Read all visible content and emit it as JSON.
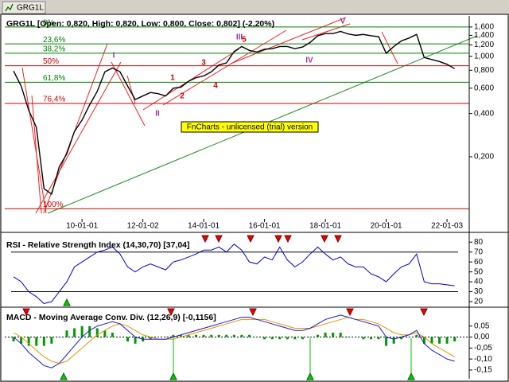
{
  "toolbar": {
    "tab": "GRG1L"
  },
  "chart_data": [
    {
      "type": "line",
      "title": "GRG1L [Open: 0,820, High: 0,820, Low: 0,800, Close: 0,802] (-2,20%)",
      "log_scale": true,
      "x": [
        2007.75,
        2008,
        2008.25,
        2008.5,
        2008.75,
        2009,
        2009.25,
        2009.5,
        2009.75,
        2010,
        2010.25,
        2010.5,
        2010.75,
        2011,
        2011.25,
        2011.5,
        2011.75,
        2012,
        2012.25,
        2012.5,
        2012.75,
        2013,
        2013.25,
        2013.5,
        2013.75,
        2014,
        2014.25,
        2014.5,
        2014.75,
        2015,
        2015.25,
        2015.5,
        2015.75,
        2016,
        2016.25,
        2016.5,
        2016.75,
        2017,
        2017.25,
        2017.5,
        2017.75,
        2018,
        2018.25,
        2018.5,
        2018.75,
        2019,
        2019.25,
        2019.5,
        2019.75,
        2020,
        2020.25,
        2020.5,
        2020.75,
        2021,
        2021.25,
        2021.5,
        2021.75,
        2022,
        2022.25
      ],
      "xlim": [
        2007.46,
        2022.73
      ],
      "xticks": [
        {
          "value": 2010,
          "label": "10-01-01"
        },
        {
          "value": 2012,
          "label": "12-01-02"
        },
        {
          "value": 2014,
          "label": "14-01-01"
        },
        {
          "value": 2016,
          "label": "16-01-01"
        },
        {
          "value": 2018,
          "label": "18-01-01"
        },
        {
          "value": 2020,
          "label": "20-01-01"
        },
        {
          "value": 2022,
          "label": "22-01-03"
        }
      ],
      "ylim": [
        0.074,
        1.91
      ],
      "yticks": [
        {
          "value": 1.6,
          "label": "1,600"
        },
        {
          "value": 1.4,
          "label": "1,400"
        },
        {
          "value": 1.2,
          "label": "1,200"
        },
        {
          "value": 1.0,
          "label": "1,000"
        },
        {
          "value": 0.8,
          "label": "0,800"
        },
        {
          "value": 0.6,
          "label": "0,600"
        },
        {
          "value": 0.4,
          "label": "0,400"
        },
        {
          "value": 0.2,
          "label": "0,200"
        }
      ],
      "series": [
        {
          "color": "#000000",
          "values": [
            0.79,
            0.62,
            0.42,
            0.32,
            0.12,
            0.11,
            0.17,
            0.21,
            0.3,
            0.36,
            0.46,
            0.57,
            0.78,
            0.83,
            0.78,
            0.62,
            0.5,
            0.53,
            0.56,
            0.55,
            0.53,
            0.6,
            0.61,
            0.67,
            0.71,
            0.73,
            0.78,
            0.87,
            0.9,
            1.08,
            1.17,
            1.1,
            1.07,
            1.12,
            1.13,
            1.17,
            1.17,
            1.13,
            1.16,
            1.25,
            1.39,
            1.44,
            1.44,
            1.49,
            1.43,
            1.4,
            1.42,
            1.39,
            1.37,
            1.05,
            1.17,
            1.28,
            1.34,
            1.42,
            0.98,
            0.95,
            0.92,
            0.88,
            0.82
          ]
        }
      ],
      "fib_levels": [
        {
          "label": "0%",
          "value": 1.6,
          "color": "#008000"
        },
        {
          "label": "23,6%",
          "value": 1.22,
          "color": "#008000"
        },
        {
          "label": "38,2%",
          "value": 1.05,
          "color": "#008000"
        },
        {
          "label": "50%",
          "value": 0.86,
          "color": "#cc0000"
        },
        {
          "label": "61,8%",
          "value": 0.66,
          "color": "#008000"
        },
        {
          "label": "76,4%",
          "value": 0.47,
          "color": "#cc0000"
        },
        {
          "label": "100%",
          "value": 0.087,
          "color": "#cc0000"
        }
      ],
      "annotations": [
        {
          "text": "1",
          "color": "#cc0000"
        },
        {
          "text": "2",
          "color": "#cc0000"
        },
        {
          "text": "3",
          "color": "#cc0000"
        },
        {
          "text": "4",
          "color": "#cc0000"
        },
        {
          "text": "5",
          "color": "#cc0000"
        },
        {
          "text": "I",
          "color": "#993399"
        },
        {
          "text": "II",
          "color": "#993399"
        },
        {
          "text": "III",
          "color": "#993399"
        },
        {
          "text": "IV",
          "color": "#993399"
        },
        {
          "text": "V",
          "color": "#993399"
        }
      ],
      "watermark": "FnCharts - unlicensed (trial) version"
    },
    {
      "type": "line",
      "title": "RSI - Relative Strength Index (14,30,70) [37,04]",
      "ylim": [
        16,
        85
      ],
      "yticks": [
        80,
        70,
        60,
        50,
        40,
        30,
        20
      ],
      "levels": [
        70,
        30
      ],
      "series": [
        {
          "color": "#0000cc",
          "values": [
            45,
            40,
            30,
            25,
            18,
            20,
            30,
            40,
            55,
            60,
            65,
            70,
            72,
            75,
            68,
            55,
            50,
            55,
            58,
            55,
            52,
            60,
            62,
            65,
            68,
            72,
            72,
            75,
            70,
            78,
            72,
            60,
            58,
            65,
            62,
            75,
            62,
            55,
            60,
            68,
            75,
            68,
            62,
            65,
            58,
            55,
            55,
            48,
            45,
            40,
            48,
            55,
            58,
            68,
            40,
            38,
            38,
            37,
            36
          ]
        }
      ]
    },
    {
      "type": "macd",
      "title": "MACD - Moving Average Conv. Div. (12,26,9) [-0,1156]",
      "ylim": [
        -0.19,
        0.125
      ],
      "yticks": [
        {
          "value": 0.05,
          "label": "0,05"
        },
        {
          "value": 0,
          "label": "0,00"
        },
        {
          "value": -0.05,
          "label": "-0,05"
        },
        {
          "value": -0.1,
          "label": "-0,10"
        },
        {
          "value": -0.15,
          "label": "-0,15"
        }
      ],
      "series": [
        {
          "type": "bar",
          "color": "#009900",
          "values": [
            -0.02,
            -0.03,
            -0.04,
            -0.04,
            -0.04,
            -0.03,
            0,
            0.03,
            0.04,
            0.05,
            0.05,
            0.04,
            0.03,
            0.02,
            0,
            -0.02,
            -0.03,
            -0.02,
            -0.01,
            0,
            0,
            0.01,
            0.01,
            0.01,
            0.01,
            0.01,
            0.01,
            0.01,
            0.01,
            0.01,
            0.01,
            0.01,
            0,
            -0.01,
            -0.01,
            -0.01,
            -0.01,
            -0.01,
            -0.01,
            0,
            0.01,
            0.02,
            0.02,
            0.02,
            0,
            0,
            -0.01,
            -0.01,
            -0.01,
            -0.04,
            -0.03,
            -0.01,
            0,
            0.01,
            -0.03,
            -0.03,
            -0.03,
            -0.03,
            -0.02
          ]
        },
        {
          "type": "line",
          "color": "#e69500",
          "values": [
            0.02,
            0,
            -0.03,
            -0.06,
            -0.09,
            -0.11,
            -0.12,
            -0.11,
            -0.08,
            -0.05,
            -0.02,
            0.01,
            0.03,
            0.05,
            0.06,
            0.05,
            0.03,
            0.01,
            0,
            -0.01,
            -0.01,
            -0.01,
            0,
            0.01,
            0.02,
            0.03,
            0.04,
            0.05,
            0.06,
            0.07,
            0.08,
            0.08,
            0.08,
            0.08,
            0.07,
            0.06,
            0.05,
            0.04,
            0.04,
            0.04,
            0.05,
            0.06,
            0.07,
            0.08,
            0.09,
            0.08,
            0.08,
            0.07,
            0.06,
            0.04,
            0.02,
            0.01,
            0.01,
            0.02,
            0,
            -0.03,
            -0.05,
            -0.07,
            -0.09
          ]
        },
        {
          "type": "line",
          "color": "#1a1acc",
          "values": [
            0,
            -0.03,
            -0.07,
            -0.1,
            -0.13,
            -0.14,
            -0.12,
            -0.08,
            -0.04,
            0,
            0.03,
            0.05,
            0.06,
            0.07,
            0.06,
            0.03,
            0,
            -0.01,
            -0.01,
            -0.01,
            -0.01,
            0,
            0.01,
            0.02,
            0.03,
            0.04,
            0.05,
            0.06,
            0.07,
            0.08,
            0.09,
            0.09,
            0.08,
            0.07,
            0.06,
            0.05,
            0.04,
            0.03,
            0.03,
            0.04,
            0.06,
            0.08,
            0.09,
            0.1,
            0.09,
            0.08,
            0.07,
            0.06,
            0.05,
            0,
            -0.01,
            0,
            0.01,
            0.03,
            -0.03,
            -0.06,
            -0.08,
            -0.1,
            -0.11
          ]
        }
      ]
    }
  ]
}
